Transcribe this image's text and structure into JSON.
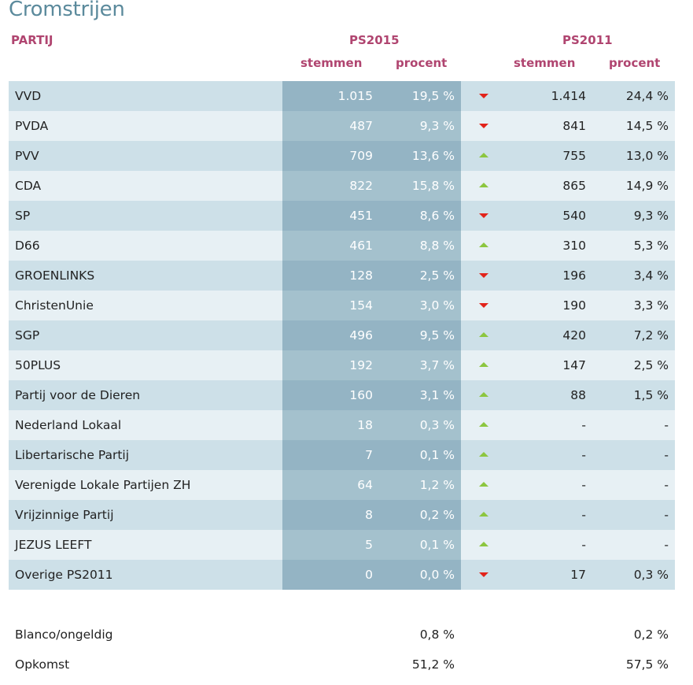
{
  "title": "Cromstrijen",
  "headers": {
    "party": "PARTIJ",
    "ps2015": "PS2015",
    "ps2011": "PS2011",
    "votes": "stemmen",
    "percent": "procent"
  },
  "colors": {
    "title": "#5b8a9c",
    "header": "#b04570",
    "trend_down": "#e2231a",
    "trend_up": "#8cc63f"
  },
  "rows": [
    {
      "party": "VVD",
      "votes_2015": "1.015",
      "pct_2015": "19,5 %",
      "trend": "down",
      "votes_2011": "1.414",
      "pct_2011": "24,4 %"
    },
    {
      "party": "PVDA",
      "votes_2015": "487",
      "pct_2015": "9,3 %",
      "trend": "down",
      "votes_2011": "841",
      "pct_2011": "14,5 %"
    },
    {
      "party": "PVV",
      "votes_2015": "709",
      "pct_2015": "13,6 %",
      "trend": "up",
      "votes_2011": "755",
      "pct_2011": "13,0 %"
    },
    {
      "party": "CDA",
      "votes_2015": "822",
      "pct_2015": "15,8 %",
      "trend": "up",
      "votes_2011": "865",
      "pct_2011": "14,9 %"
    },
    {
      "party": "SP",
      "votes_2015": "451",
      "pct_2015": "8,6 %",
      "trend": "down",
      "votes_2011": "540",
      "pct_2011": "9,3 %"
    },
    {
      "party": "D66",
      "votes_2015": "461",
      "pct_2015": "8,8 %",
      "trend": "up",
      "votes_2011": "310",
      "pct_2011": "5,3 %"
    },
    {
      "party": "GROENLINKS",
      "votes_2015": "128",
      "pct_2015": "2,5 %",
      "trend": "down",
      "votes_2011": "196",
      "pct_2011": "3,4 %"
    },
    {
      "party": "ChristenUnie",
      "votes_2015": "154",
      "pct_2015": "3,0 %",
      "trend": "down",
      "votes_2011": "190",
      "pct_2011": "3,3 %"
    },
    {
      "party": "SGP",
      "votes_2015": "496",
      "pct_2015": "9,5 %",
      "trend": "up",
      "votes_2011": "420",
      "pct_2011": "7,2 %"
    },
    {
      "party": "50PLUS",
      "votes_2015": "192",
      "pct_2015": "3,7 %",
      "trend": "up",
      "votes_2011": "147",
      "pct_2011": "2,5 %"
    },
    {
      "party": "Partij voor de Dieren",
      "votes_2015": "160",
      "pct_2015": "3,1 %",
      "trend": "up",
      "votes_2011": "88",
      "pct_2011": "1,5 %"
    },
    {
      "party": "Nederland Lokaal",
      "votes_2015": "18",
      "pct_2015": "0,3 %",
      "trend": "up",
      "votes_2011": "-",
      "pct_2011": "-"
    },
    {
      "party": "Libertarische Partij",
      "votes_2015": "7",
      "pct_2015": "0,1 %",
      "trend": "up",
      "votes_2011": "-",
      "pct_2011": "-"
    },
    {
      "party": "Verenigde Lokale Partijen ZH",
      "votes_2015": "64",
      "pct_2015": "1,2 %",
      "trend": "up",
      "votes_2011": "-",
      "pct_2011": "-"
    },
    {
      "party": "Vrijzinnige Partij",
      "votes_2015": "8",
      "pct_2015": "0,2 %",
      "trend": "up",
      "votes_2011": "-",
      "pct_2011": "-"
    },
    {
      "party": "JEZUS LEEFT",
      "votes_2015": "5",
      "pct_2015": "0,1 %",
      "trend": "up",
      "votes_2011": "-",
      "pct_2011": "-"
    },
    {
      "party": "Overige PS2011",
      "votes_2015": "0",
      "pct_2015": "0,0 %",
      "trend": "down",
      "votes_2011": "17",
      "pct_2011": "0,3 %"
    }
  ],
  "footer": {
    "blanco_label": "Blanco/ongeldig",
    "blanco_2015": "0,8 %",
    "blanco_2011": "0,2 %",
    "turnout_label": "Opkomst",
    "turnout_2015": "51,2 %",
    "turnout_2011": "57,5 %"
  }
}
